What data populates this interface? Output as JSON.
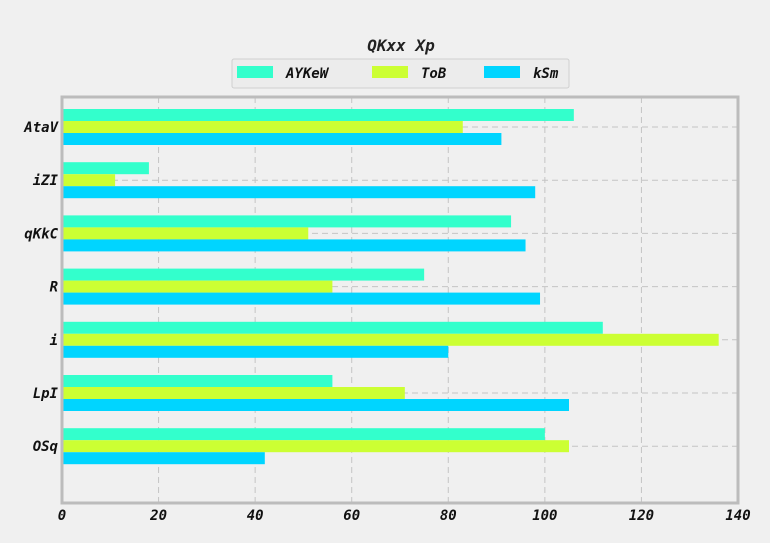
{
  "chart_data": {
    "type": "bar",
    "orientation": "horizontal",
    "title": "QKxx Xp",
    "xlabel": "",
    "ylabel": "",
    "categories": [
      "AtaV",
      "iZI",
      "qKkC",
      "R",
      "i",
      "LpI",
      "OSq"
    ],
    "series": [
      {
        "name": "AYKeW",
        "color": "#33ffcc",
        "values": [
          106,
          18,
          93,
          75,
          112,
          56,
          100
        ]
      },
      {
        "name": "ToB",
        "color": "#ccff33",
        "values": [
          83,
          11,
          51,
          56,
          136,
          71,
          105
        ]
      },
      {
        "name": "kSm",
        "color": "#00d5ff",
        "values": [
          91,
          98,
          96,
          99,
          80,
          105,
          42
        ]
      }
    ],
    "xlim": [
      0,
      140
    ],
    "xticks": [
      0,
      20,
      40,
      60,
      80,
      100,
      120,
      140
    ],
    "grid": true,
    "legend_position": "top-center"
  }
}
